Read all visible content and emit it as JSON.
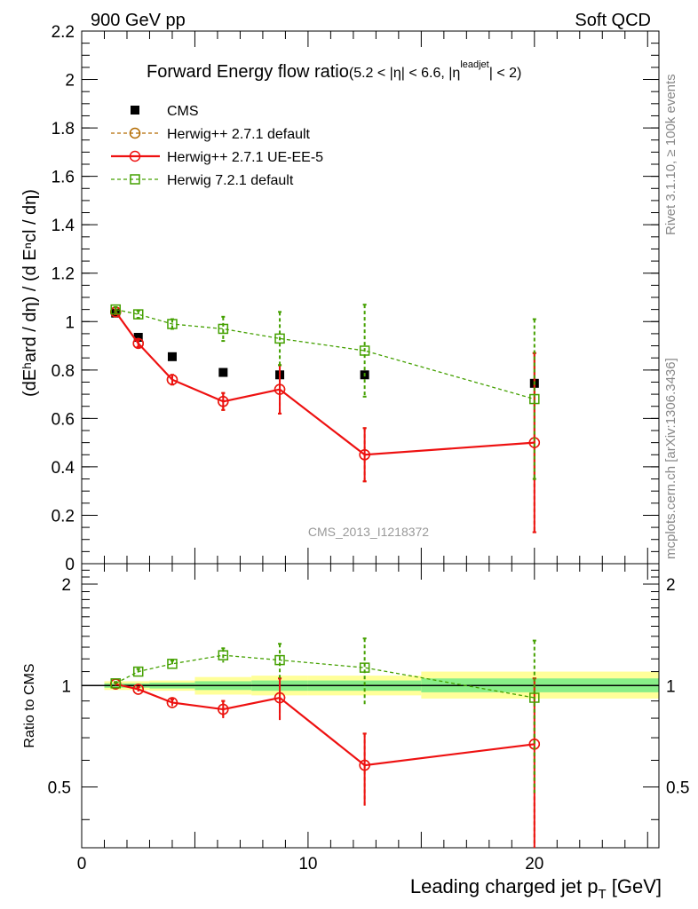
{
  "header": {
    "left": "900 GeV pp",
    "right": "Soft QCD"
  },
  "side_labels": {
    "rivet": "Rivet 3.1.10, ≥ 100k events",
    "mcplots": "mcplots.cern.ch [arXiv:1306.3436]"
  },
  "chart_data": [
    {
      "type": "line",
      "title_main": "Forward Energy flow ratio",
      "title_cut_a": "(5.2 < |η| < 6.6, |η",
      "title_cut_sup": "leadjet",
      "title_cut_b": "| < 2)",
      "ylabel": "(dEʰard / dη) / (d Eⁿcl / dη)",
      "analysis_label": "CMS_2013_I1218372",
      "xlim": [
        0,
        25.5
      ],
      "ylim": [
        0,
        2.2
      ],
      "yticks": [
        0,
        0.2,
        0.4,
        0.6,
        0.8,
        1,
        1.2,
        1.4,
        1.6,
        1.8,
        2,
        2.2
      ],
      "ytick_labels": [
        "0",
        "0.2",
        "0.4",
        "0.6",
        "0.8",
        "1",
        "1.2",
        "1.4",
        "1.6",
        "1.8",
        "2",
        "2.2"
      ],
      "legend": [
        {
          "label": "CMS",
          "color": "#000000",
          "marker": "filled-square",
          "line": "none"
        },
        {
          "label": "Herwig++ 2.7.1 default",
          "color": "#b36b00",
          "marker": "open-circle",
          "line": "dashed"
        },
        {
          "label": "Herwig++ 2.7.1 UE-EE-5",
          "color": "#ee1111",
          "marker": "open-circle",
          "line": "solid"
        },
        {
          "label": "Herwig 7.2.1 default",
          "color": "#44a000",
          "marker": "open-square",
          "line": "dashed"
        }
      ],
      "series": [
        {
          "name": "CMS",
          "x": [
            1.5,
            2.5,
            4,
            6.25,
            8.75,
            12.5,
            20
          ],
          "y": [
            1.035,
            0.935,
            0.855,
            0.79,
            0.78,
            0.78,
            0.745
          ],
          "yerr": [
            0,
            0,
            0,
            0,
            0,
            0,
            0
          ]
        },
        {
          "name": "Herwig++ 2.7.1 default",
          "x": [
            1.5,
            2.5,
            4,
            6.25,
            8.75,
            12.5,
            20
          ],
          "y": [
            1.04,
            0.91,
            0.76,
            0.67,
            0.72,
            0.45,
            0.5
          ],
          "yerr": [
            0.01,
            0.015,
            0.02,
            0.035,
            0.1,
            0.11,
            0.37
          ]
        },
        {
          "name": "Herwig++ 2.7.1 UE-EE-5",
          "x": [
            1.5,
            2.5,
            4,
            6.25,
            8.75,
            12.5,
            20
          ],
          "y": [
            1.04,
            0.91,
            0.76,
            0.67,
            0.72,
            0.45,
            0.5
          ],
          "yerr": [
            0.01,
            0.015,
            0.02,
            0.035,
            0.1,
            0.11,
            0.37
          ]
        },
        {
          "name": "Herwig 7.2.1 default",
          "x": [
            1.5,
            2.5,
            4,
            6.25,
            8.75,
            12.5,
            20
          ],
          "y": [
            1.05,
            1.03,
            0.99,
            0.97,
            0.93,
            0.88,
            0.68
          ],
          "yerr": [
            0.01,
            0.015,
            0.02,
            0.05,
            0.11,
            0.19,
            0.33
          ]
        }
      ]
    },
    {
      "type": "line",
      "ylabel": "Ratio to CMS",
      "xlabel": "Leading charged jet p",
      "xlabel_sub": "T",
      "xlabel_unit": " [GeV]",
      "xlim": [
        0,
        25.5
      ],
      "ylim": [
        0.33,
        2.3
      ],
      "yscale": "log",
      "yticks": [
        0.5,
        1,
        2
      ],
      "ytick_labels": [
        "0.5",
        "1",
        "2"
      ],
      "xticks": [
        0,
        10,
        20
      ],
      "xtick_labels": [
        "0",
        "10",
        "20"
      ],
      "reference_line": 1,
      "uncertainty_bands": [
        {
          "x_from": 1,
          "x_to": 2,
          "inner": [
            0.985,
            1.015
          ],
          "outer": [
            0.97,
            1.03
          ]
        },
        {
          "x_from": 2,
          "x_to": 3,
          "inner": [
            0.985,
            1.015
          ],
          "outer": [
            0.97,
            1.03
          ]
        },
        {
          "x_from": 3,
          "x_to": 5,
          "inner": [
            0.98,
            1.02
          ],
          "outer": [
            0.965,
            1.035
          ]
        },
        {
          "x_from": 5,
          "x_to": 7.5,
          "inner": [
            0.97,
            1.03
          ],
          "outer": [
            0.94,
            1.06
          ]
        },
        {
          "x_from": 7.5,
          "x_to": 10,
          "inner": [
            0.965,
            1.035
          ],
          "outer": [
            0.935,
            1.07
          ]
        },
        {
          "x_from": 10,
          "x_to": 15,
          "inner": [
            0.965,
            1.035
          ],
          "outer": [
            0.935,
            1.07
          ]
        },
        {
          "x_from": 15,
          "x_to": 25.5,
          "inner": [
            0.955,
            1.05
          ],
          "outer": [
            0.915,
            1.1
          ]
        }
      ],
      "band_colors": {
        "inner": "#88ee88",
        "outer": "#ffff99"
      },
      "series": [
        {
          "name": "Herwig++ 2.7.1 default",
          "x": [
            1.5,
            2.5,
            4,
            6.25,
            8.75,
            12.5,
            20
          ],
          "y": [
            1.01,
            0.975,
            0.89,
            0.85,
            0.92,
            0.58,
            0.67
          ],
          "yerr": [
            0.01,
            0.015,
            0.02,
            0.05,
            0.13,
            0.14,
            0.38
          ]
        },
        {
          "name": "Herwig++ 2.7.1 UE-EE-5",
          "x": [
            1.5,
            2.5,
            4,
            6.25,
            8.75,
            12.5,
            20
          ],
          "y": [
            1.01,
            0.975,
            0.89,
            0.85,
            0.92,
            0.58,
            0.67
          ],
          "yerr": [
            0.01,
            0.015,
            0.02,
            0.05,
            0.13,
            0.14,
            0.38
          ]
        },
        {
          "name": "Herwig 7.2.1 default",
          "x": [
            1.5,
            2.5,
            4,
            6.25,
            8.75,
            12.5,
            20
          ],
          "y": [
            1.015,
            1.1,
            1.16,
            1.23,
            1.19,
            1.13,
            0.92
          ],
          "yerr": [
            0.01,
            0.02,
            0.025,
            0.06,
            0.14,
            0.25,
            0.44
          ]
        }
      ]
    }
  ]
}
